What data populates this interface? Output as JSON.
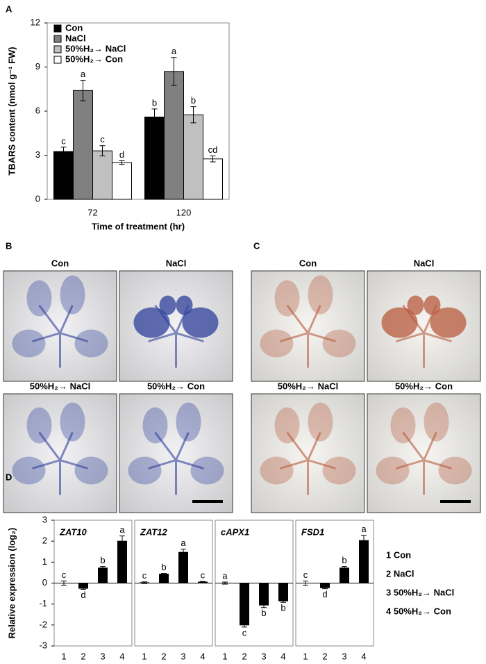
{
  "chart_data": [
    {
      "type": "bar",
      "panel": "A",
      "ylabel": "TBARS content (nmol g⁻¹ FW)",
      "xlabel": "Time of treatment (hr)",
      "categories": [
        "72",
        "120"
      ],
      "series": [
        {
          "name": "Con",
          "color": "#000000",
          "values": [
            3.25,
            5.6
          ],
          "errors": [
            0.3,
            0.55
          ],
          "annotations": [
            "c",
            "b"
          ]
        },
        {
          "name": "NaCl",
          "color": "#808080",
          "values": [
            7.4,
            8.7
          ],
          "errors": [
            0.7,
            0.95
          ],
          "annotations": [
            "a",
            "a"
          ]
        },
        {
          "name": "50%H₂→ NaCl",
          "color": "#c0c0c0",
          "values": [
            3.3,
            5.75
          ],
          "errors": [
            0.35,
            0.55
          ],
          "annotations": [
            "c",
            "b"
          ]
        },
        {
          "name": "50%H₂→ Con",
          "color": "#ffffff",
          "values": [
            2.5,
            2.75
          ],
          "errors": [
            0.12,
            0.2
          ],
          "annotations": [
            "d",
            "cd"
          ]
        }
      ],
      "ylim": [
        0,
        12
      ],
      "yticks": [
        0,
        3,
        6,
        9,
        12
      ],
      "legend": "upper left"
    },
    {
      "type": "bar",
      "panel": "D",
      "title": "ZAT10",
      "ylabel": "Relative expression (log₂)",
      "categories": [
        "1",
        "2",
        "3",
        "4"
      ],
      "values": [
        0,
        -0.25,
        0.72,
        2.0
      ],
      "errors": [
        0.1,
        0.05,
        0.07,
        0.25
      ],
      "annotations": [
        "c",
        "d",
        "b",
        "a"
      ],
      "color": "#000000",
      "ylim": [
        -3,
        3
      ],
      "yticks": [
        -3,
        -2,
        -1,
        0,
        1,
        2,
        3
      ]
    },
    {
      "type": "bar",
      "title": "ZAT12",
      "categories": [
        "1",
        "2",
        "3",
        "4"
      ],
      "values": [
        0.02,
        0.43,
        1.47,
        0.05
      ],
      "errors": [
        0.04,
        0.03,
        0.15,
        0.03
      ],
      "annotations": [
        "c",
        "b",
        "a",
        "c"
      ],
      "color": "#000000",
      "ylim": [
        -3,
        3
      ]
    },
    {
      "type": "bar",
      "title": "cAPX1",
      "categories": [
        "1",
        "2",
        "3",
        "4"
      ],
      "values": [
        0,
        -2.0,
        -1.05,
        -0.85
      ],
      "errors": [
        0.05,
        0.1,
        0.12,
        0.07
      ],
      "annotations": [
        "a",
        "c",
        "b",
        "b"
      ],
      "color": "#000000",
      "ylim": [
        -3,
        3
      ]
    },
    {
      "type": "bar",
      "title": "FSD1",
      "categories": [
        "1",
        "2",
        "3",
        "4"
      ],
      "values": [
        0,
        -0.22,
        0.72,
        2.03
      ],
      "errors": [
        0.1,
        0.05,
        0.07,
        0.25
      ],
      "annotations": [
        "c",
        "d",
        "b",
        "a"
      ],
      "color": "#000000",
      "ylim": [
        -3,
        3
      ]
    }
  ],
  "panel_d_legend": [
    "1 Con",
    "2 NaCl",
    "3 50%H₂→ NaCl",
    "4 50%H₂→ Con"
  ],
  "image_panels": [
    {
      "panel": "B",
      "labels": [
        "Con",
        "NaCl",
        "50%H₂→ NaCl",
        "50%H₂→ Con"
      ]
    },
    {
      "panel": "C",
      "labels": [
        "Con",
        "NaCl",
        "50%H₂→ NaCl",
        "50%H₂→ Con"
      ]
    }
  ]
}
